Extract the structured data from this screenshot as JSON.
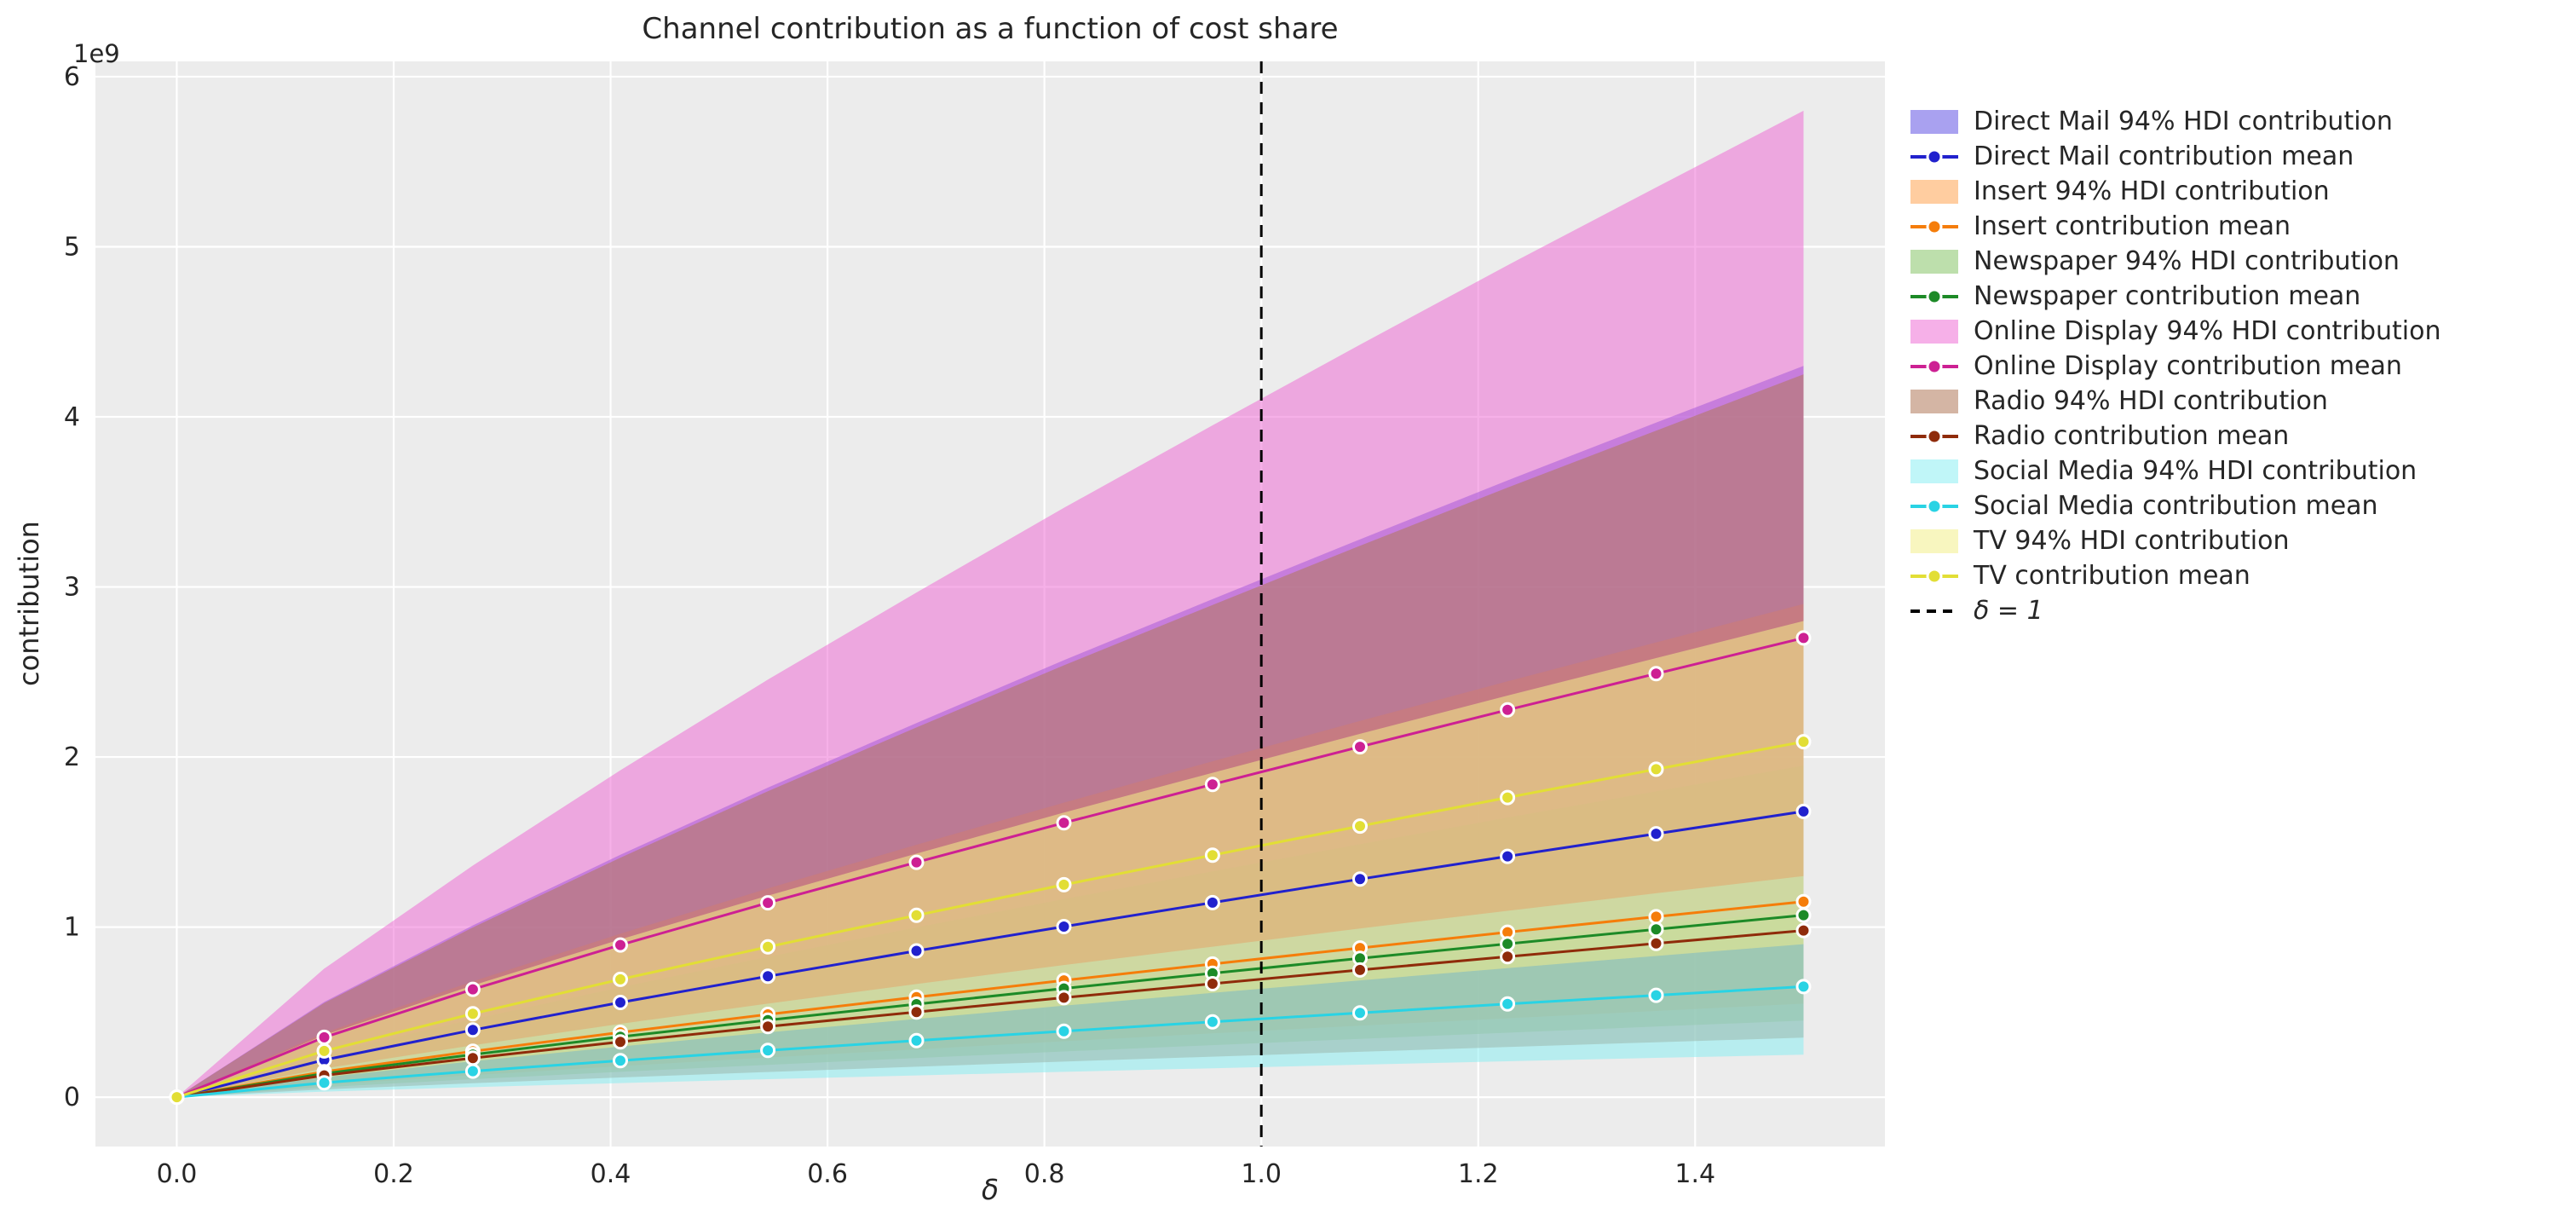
{
  "figure": {
    "title": "Channel contribution as a function of cost share",
    "xlabel": "δ",
    "ylabel": "contribution",
    "axis_offset_label": "1e9"
  },
  "chart_data": {
    "type": "area",
    "title": "Channel contribution as a function of cost share",
    "xlabel": "δ",
    "ylabel": "contribution",
    "y_scale_offset": "1e9",
    "grid": true,
    "legend_position": "right",
    "axes_facecolor": "#ececec",
    "grid_color": "#ffffff",
    "xlim": [
      -0.075,
      1.575
    ],
    "ylim_1e9": [
      -0.29,
      6.09
    ],
    "xtick_values": [
      0.0,
      0.2,
      0.4,
      0.6,
      0.8,
      1.0,
      1.2,
      1.4
    ],
    "xtick_labels": [
      "0.0",
      "0.2",
      "0.4",
      "0.6",
      "0.8",
      "1.0",
      "1.2",
      "1.4"
    ],
    "ytick_values_1e9": [
      0,
      1,
      2,
      3,
      4,
      5,
      6
    ],
    "ytick_labels": [
      "0",
      "1",
      "2",
      "3",
      "4",
      "5",
      "6"
    ],
    "x": [
      0.0,
      0.136,
      0.273,
      0.409,
      0.545,
      0.682,
      0.818,
      0.955,
      1.091,
      1.227,
      1.364,
      1.5
    ],
    "vline": {
      "x": 1.0,
      "label": "δ = 1",
      "style": "dashed",
      "color": "#000000"
    },
    "series": [
      {
        "name": "Direct Mail",
        "hdi_label": "Direct Mail 94% HDI contribution",
        "mean_label": "Direct Mail contribution mean",
        "line_color": "#2121cd",
        "fill_color": "#5443e2",
        "fill_alpha": 0.5,
        "mean_1e9": [
          0,
          0.219,
          0.395,
          0.557,
          0.711,
          0.86,
          1.003,
          1.144,
          1.282,
          1.416,
          1.549,
          1.68
        ],
        "hdi_lower_1e9": [
          0,
          0.117,
          0.211,
          0.298,
          0.381,
          0.46,
          0.538,
          0.613,
          0.687,
          0.759,
          0.83,
          0.9
        ],
        "hdi_upper_1e9": [
          0,
          0.56,
          1.01,
          1.425,
          1.82,
          2.2,
          2.569,
          2.928,
          3.28,
          3.626,
          3.966,
          4.3
        ]
      },
      {
        "name": "Insert",
        "hdi_label": "Insert 94% HDI contribution",
        "mean_label": "Insert contribution mean",
        "line_color": "#f57d0a",
        "fill_color": "#ff9c42",
        "fill_alpha": 0.5,
        "mean_1e9": [
          0,
          0.15,
          0.27,
          0.381,
          0.487,
          0.588,
          0.687,
          0.783,
          0.877,
          0.97,
          1.061,
          1.15
        ],
        "hdi_lower_1e9": [
          0,
          0.072,
          0.129,
          0.182,
          0.233,
          0.281,
          0.329,
          0.375,
          0.42,
          0.464,
          0.507,
          0.55
        ],
        "hdi_upper_1e9": [
          0,
          0.378,
          0.681,
          0.961,
          1.227,
          1.484,
          1.732,
          1.975,
          2.212,
          2.445,
          2.674,
          2.9
        ]
      },
      {
        "name": "Newspaper",
        "hdi_label": "Newspaper 94% HDI contribution",
        "mean_label": "Newspaper contribution mean",
        "line_color": "#1d8a27",
        "fill_color": "#7bbf59",
        "fill_alpha": 0.5,
        "mean_1e9": [
          0,
          0.139,
          0.251,
          0.355,
          0.453,
          0.547,
          0.639,
          0.729,
          0.816,
          0.902,
          0.987,
          1.07
        ],
        "hdi_lower_1e9": [
          0,
          0.059,
          0.106,
          0.149,
          0.19,
          0.23,
          0.269,
          0.306,
          0.343,
          0.379,
          0.415,
          0.45
        ],
        "hdi_upper_1e9": [
          0,
          0.254,
          0.458,
          0.646,
          0.825,
          0.998,
          1.165,
          1.328,
          1.487,
          1.644,
          1.798,
          1.95
        ]
      },
      {
        "name": "Online Display",
        "hdi_label": "Online Display 94% HDI contribution",
        "mean_label": "Online Display contribution mean",
        "line_color": "#cd2093",
        "fill_color": "#ee62d2",
        "fill_alpha": 0.5,
        "mean_1e9": [
          0,
          0.352,
          0.634,
          0.895,
          1.143,
          1.381,
          1.613,
          1.839,
          2.06,
          2.277,
          2.49,
          2.7
        ],
        "hdi_lower_1e9": [
          0,
          0.143,
          0.258,
          0.365,
          0.466,
          0.563,
          0.657,
          0.749,
          0.839,
          0.928,
          1.014,
          1.1
        ],
        "hdi_upper_1e9": [
          0,
          0.756,
          1.362,
          1.922,
          2.455,
          2.967,
          3.465,
          3.95,
          4.424,
          4.891,
          5.349,
          5.8
        ]
      },
      {
        "name": "Radio",
        "hdi_label": "Radio 94% HDI contribution",
        "mean_label": "Radio contribution mean",
        "line_color": "#8f2b0a",
        "fill_color": "#b1795a",
        "fill_alpha": 0.55,
        "mean_1e9": [
          0,
          0.128,
          0.23,
          0.325,
          0.415,
          0.501,
          0.585,
          0.667,
          0.748,
          0.826,
          0.904,
          0.98
        ],
        "hdi_lower_1e9": [
          0,
          0.046,
          0.082,
          0.116,
          0.148,
          0.179,
          0.209,
          0.238,
          0.267,
          0.295,
          0.323,
          0.35
        ],
        "hdi_upper_1e9": [
          0,
          0.554,
          0.998,
          1.408,
          1.799,
          2.174,
          2.539,
          2.894,
          3.242,
          3.584,
          3.919,
          4.25
        ]
      },
      {
        "name": "Social Media",
        "hdi_label": "Social Media 94% HDI contribution",
        "mean_label": "Social Media contribution mean",
        "line_color": "#29d3e4",
        "fill_color": "#8deef3",
        "fill_alpha": 0.55,
        "mean_1e9": [
          0,
          0.085,
          0.153,
          0.215,
          0.275,
          0.333,
          0.388,
          0.443,
          0.496,
          0.548,
          0.599,
          0.65
        ],
        "hdi_lower_1e9": [
          0,
          0.033,
          0.059,
          0.083,
          0.106,
          0.128,
          0.149,
          0.17,
          0.191,
          0.211,
          0.231,
          0.25
        ],
        "hdi_upper_1e9": [
          0,
          0.169,
          0.305,
          0.431,
          0.55,
          0.665,
          0.777,
          0.885,
          0.992,
          1.096,
          1.199,
          1.3
        ]
      },
      {
        "name": "TV",
        "hdi_label": "TV 94% HDI contribution",
        "mean_label": "TV contribution mean",
        "line_color": "#e2de35",
        "fill_color": "#f2ee8a",
        "fill_alpha": 0.55,
        "mean_1e9": [
          0,
          0.272,
          0.491,
          0.693,
          0.884,
          1.069,
          1.249,
          1.423,
          1.594,
          1.762,
          1.928,
          2.09
        ],
        "hdi_lower_1e9": [
          0,
          0.117,
          0.211,
          0.298,
          0.381,
          0.46,
          0.538,
          0.613,
          0.687,
          0.759,
          0.83,
          0.9
        ],
        "hdi_upper_1e9": [
          0,
          0.365,
          0.657,
          0.928,
          1.185,
          1.432,
          1.673,
          1.907,
          2.136,
          2.361,
          2.582,
          2.8
        ]
      }
    ]
  }
}
